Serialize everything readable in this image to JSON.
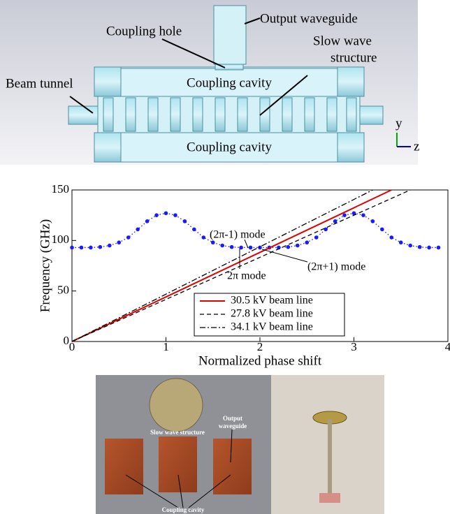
{
  "diagram": {
    "labels": {
      "output_waveguide": "Output waveguide",
      "coupling_hole": "Coupling hole",
      "slow_wave_structure": [
        "Slow wave",
        "structure"
      ],
      "beam_tunnel": "Beam tunnel",
      "coupling_cavity_top": "Coupling cavity",
      "coupling_cavity_bottom": "Coupling cavity",
      "axis_y": "y",
      "axis_z": "z"
    }
  },
  "chart_data": {
    "type": "line",
    "x_label": "Normalized phase shift",
    "y_label": "Frequency (GHz)",
    "xlim": [
      0,
      4
    ],
    "xticks": [
      0,
      1,
      2,
      3,
      4
    ],
    "ylim": [
      0,
      150
    ],
    "yticks": [
      0,
      50,
      100,
      150
    ],
    "legend": "lower center",
    "series": [
      {
        "color": "#1a1aff",
        "line_style": "dotted",
        "marker": "circle",
        "x": [
          0,
          0.1,
          0.2,
          0.3,
          0.4,
          0.5,
          0.6,
          0.7,
          0.8,
          0.9,
          1.0,
          1.1,
          1.2,
          1.3,
          1.4,
          1.5,
          1.6,
          1.7,
          1.8,
          1.9,
          2.0,
          2.1,
          2.2,
          2.3,
          2.4,
          2.5,
          2.6,
          2.7,
          2.8,
          2.9,
          3.0,
          3.1,
          3.2,
          3.3,
          3.4,
          3.5,
          3.6,
          3.7,
          3.8,
          3.9
        ],
        "values": [
          93,
          93,
          93,
          93.5,
          95,
          98,
          103,
          111,
          119,
          125,
          127,
          125,
          119,
          111,
          103,
          98,
          95,
          93.5,
          93,
          93,
          93,
          93,
          93,
          93.5,
          95,
          98,
          103,
          111,
          119,
          125,
          127,
          125,
          119,
          111,
          103,
          98,
          95,
          93.5,
          93,
          93
        ]
      },
      {
        "name": "30.5  kV beam line",
        "color": "#e00000",
        "line_style": "solid",
        "x": [
          0,
          3.4
        ],
        "values": [
          0,
          150
        ]
      },
      {
        "name": "27.8  kV beam line",
        "color": "#000000",
        "line_style": "dashed",
        "x": [
          0,
          3.6
        ],
        "values": [
          0,
          150
        ]
      },
      {
        "name": "34.1  kV beam line",
        "color": "#000000",
        "line_style": "dashdot",
        "x": [
          0,
          3.2
        ],
        "values": [
          0,
          150
        ]
      }
    ],
    "annotations": [
      "(2π-1) mode",
      "2π mode",
      "(2π+1) mode"
    ]
  },
  "photo": {
    "labels": {
      "output_waveguide": [
        "Output",
        "waveguide"
      ],
      "slow_wave_structure": "Slow wave structure",
      "coupling_cavity": "Coupling cavity"
    }
  }
}
